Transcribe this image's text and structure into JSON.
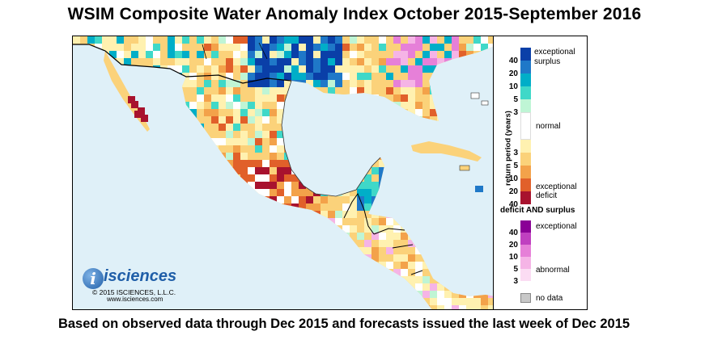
{
  "title": "WSIM Composite Water Anomaly Index October 2015-September 2016",
  "caption": "Based on observed data through Dec 2015 and forecasts issued the last week of Dec 2015",
  "logo": {
    "word": "isciences",
    "letter": "i",
    "copyright": "© 2015 ISCIENCES, L.L.C.",
    "url": "www.isciences.com"
  },
  "legend": {
    "return_period_title": "return period (years)",
    "surplus_label_1": "exceptional",
    "surplus_label_2": "surplus",
    "normal_label": "normal",
    "deficit_label_1": "exceptional",
    "deficit_label_2": "deficit",
    "surplus_numbers": [
      "40",
      "20",
      "10",
      "5",
      "3"
    ],
    "deficit_numbers": [
      "3",
      "5",
      "10",
      "20",
      "40"
    ],
    "both_title": "deficit AND surplus",
    "both_exceptional": "exceptional",
    "both_abnormal": "abnormal",
    "both_numbers": [
      "40",
      "20",
      "10",
      "5",
      "3"
    ],
    "nodata_label": "no data",
    "colors": {
      "surplus": [
        "#0a3fa8",
        "#1f78c8",
        "#00aec8",
        "#3fd8c8",
        "#bff5d5"
      ],
      "normal": "#ffffff",
      "deficit": [
        "#fff1b0",
        "#fbd27a",
        "#f3a24a",
        "#e1602a",
        "#a8122e"
      ],
      "both": [
        "#8a0096",
        "#c040c0",
        "#e680d8",
        "#f5b4e6",
        "#fbdcf3"
      ],
      "nodata": "#c8c8c8",
      "water": "#dff0f8"
    }
  }
}
